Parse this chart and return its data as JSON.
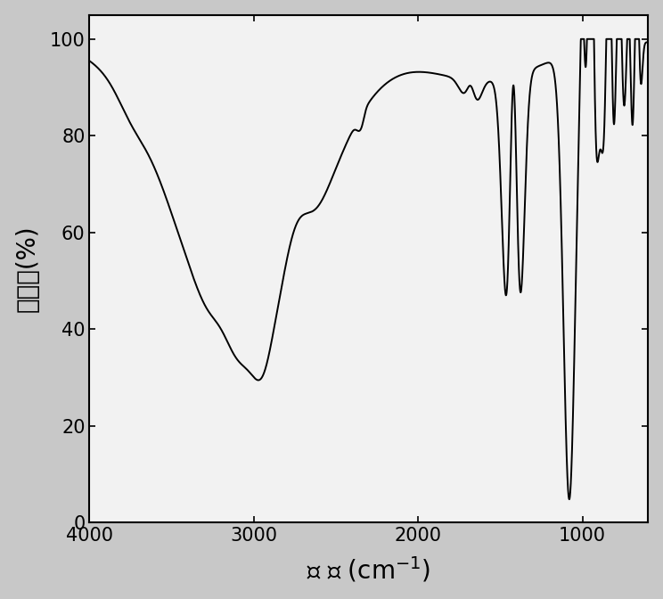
{
  "xlabel": "波 长 (cm$^{-1}$)",
  "ylabel": "透过率(%)",
  "xlim": [
    4000,
    600
  ],
  "ylim": [
    0,
    105
  ],
  "yticks": [
    0,
    20,
    40,
    60,
    80,
    100
  ],
  "xticks": [
    4000,
    3000,
    2000,
    1000
  ],
  "line_color": "#000000",
  "background_color": "#c8c8c8",
  "plot_bg_color": "#f0f0f0",
  "linewidth": 1.4
}
